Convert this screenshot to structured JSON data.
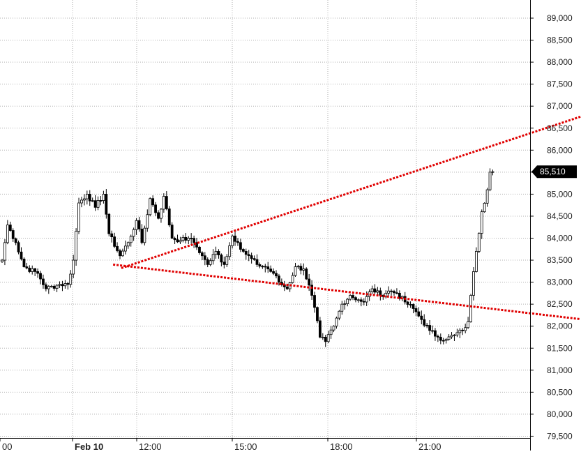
{
  "chart_data": {
    "type": "candlestick",
    "xlabel": "",
    "ylabel": "",
    "ylim": [
      79300,
      89400
    ],
    "y_ticks": [
      {
        "value": 89000,
        "label": "89,000"
      },
      {
        "value": 88500,
        "label": "88,500"
      },
      {
        "value": 88000,
        "label": "88,000"
      },
      {
        "value": 87500,
        "label": "87,500"
      },
      {
        "value": 87000,
        "label": "87,000"
      },
      {
        "value": 86500,
        "label": "86,500"
      },
      {
        "value": 86000,
        "label": "86,000"
      },
      {
        "value": 85500,
        "label": "85,500"
      },
      {
        "value": 85000,
        "label": "85,000"
      },
      {
        "value": 84500,
        "label": "84,500"
      },
      {
        "value": 84000,
        "label": "84,000"
      },
      {
        "value": 83500,
        "label": "83,500"
      },
      {
        "value": 83000,
        "label": "83,000"
      },
      {
        "value": 82500,
        "label": "82,500"
      },
      {
        "value": 82000,
        "label": "82,000"
      },
      {
        "value": 81500,
        "label": "81,500"
      },
      {
        "value": 81000,
        "label": "81,000"
      },
      {
        "value": 80500,
        "label": "80,500"
      },
      {
        "value": 80000,
        "label": "80,000"
      },
      {
        "value": 79500,
        "label": "79,500"
      }
    ],
    "x_ticks": [
      {
        "label": "00",
        "bold": false
      },
      {
        "label": "Feb 10",
        "bold": true
      },
      {
        "label": "12:00",
        "bold": false
      },
      {
        "label": "15:00",
        "bold": false
      },
      {
        "label": "18:00",
        "bold": false
      },
      {
        "label": "21:00",
        "bold": false
      }
    ],
    "last_price": {
      "value": 85510,
      "label": "85,510"
    },
    "colors": {
      "up": "#ffffff",
      "down": "#000000",
      "outline": "#000000",
      "trendline": "#e00000",
      "grid": "#b0b0b0",
      "price_tag": "#000000"
    },
    "grid": true,
    "trendlines": [
      {
        "name": "upper",
        "points": [
          [
            43.5,
            83320
          ],
          [
            211,
            86760
          ]
        ]
      },
      {
        "name": "lower",
        "points": [
          [
            40.5,
            83400
          ],
          [
            211,
            82160
          ]
        ]
      }
    ],
    "anchors": [
      [
        0,
        83500
      ],
      [
        2,
        84300
      ],
      [
        5,
        83900
      ],
      [
        8,
        83350
      ],
      [
        13,
        83200
      ],
      [
        16,
        82850
      ],
      [
        21,
        82950
      ],
      [
        24,
        82950
      ],
      [
        26,
        83500
      ],
      [
        28,
        84800
      ],
      [
        31,
        85000
      ],
      [
        34,
        84700
      ],
      [
        37,
        85000
      ],
      [
        39,
        84100
      ],
      [
        43,
        83600
      ],
      [
        46,
        83900
      ],
      [
        49,
        84400
      ],
      [
        51,
        83900
      ],
      [
        54,
        84900
      ],
      [
        57,
        84450
      ],
      [
        59,
        84950
      ],
      [
        62,
        84000
      ],
      [
        65,
        83950
      ],
      [
        68,
        84000
      ],
      [
        70,
        83900
      ],
      [
        73,
        83600
      ],
      [
        75,
        83400
      ],
      [
        78,
        83700
      ],
      [
        81,
        83400
      ],
      [
        84,
        84050
      ],
      [
        86,
        83900
      ],
      [
        88,
        83700
      ],
      [
        93,
        83400
      ],
      [
        96,
        83350
      ],
      [
        99,
        83200
      ],
      [
        101,
        83000
      ],
      [
        104,
        82850
      ],
      [
        107,
        83350
      ],
      [
        110,
        83300
      ],
      [
        113,
        82700
      ],
      [
        116,
        81750
      ],
      [
        118,
        81650
      ],
      [
        121,
        82000
      ],
      [
        124,
        82500
      ],
      [
        127,
        82700
      ],
      [
        130,
        82600
      ],
      [
        132,
        82550
      ],
      [
        135,
        82850
      ],
      [
        138,
        82700
      ],
      [
        141,
        82800
      ],
      [
        144,
        82750
      ],
      [
        147,
        82550
      ],
      [
        150,
        82400
      ],
      [
        153,
        82150
      ],
      [
        156,
        81900
      ],
      [
        159,
        81750
      ],
      [
        162,
        81700
      ],
      [
        165,
        81800
      ],
      [
        168,
        81900
      ],
      [
        170,
        82100
      ],
      [
        171,
        82700
      ],
      [
        173,
        83700
      ],
      [
        175,
        84600
      ],
      [
        177,
        85100
      ],
      [
        178,
        85500
      ],
      [
        179,
        85600
      ]
    ]
  }
}
